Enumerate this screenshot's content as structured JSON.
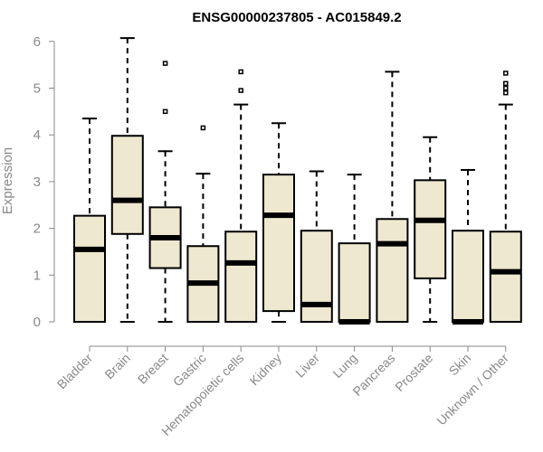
{
  "chart_data": {
    "type": "box",
    "title": "ENSG00000237805 - AC015849.2",
    "ylabel": "Expression",
    "xlabel": "",
    "ylim": [
      0,
      6.2
    ],
    "yticks": [
      0,
      1,
      2,
      3,
      4,
      5,
      6
    ],
    "grid": false,
    "box_color": "#EEE8D0",
    "categories": [
      "Bladder",
      "Brain",
      "Breast",
      "Gastric",
      "Hematopoietic cells",
      "Kidney",
      "Liver",
      "Lung",
      "Pancreas",
      "Prostate",
      "Skin",
      "Unknown / Other"
    ],
    "boxes": [
      {
        "min": 0,
        "q1": 0,
        "median": 1.55,
        "q3": 2.27,
        "max": 4.35,
        "outliers": []
      },
      {
        "min": 0,
        "q1": 1.88,
        "median": 2.6,
        "q3": 3.98,
        "max": 6.07,
        "outliers": []
      },
      {
        "min": 0,
        "q1": 1.15,
        "median": 1.8,
        "q3": 2.45,
        "max": 3.65,
        "outliers": [
          4.5,
          5.53
        ]
      },
      {
        "min": 0,
        "q1": 0,
        "median": 0.83,
        "q3": 1.62,
        "max": 3.17,
        "outliers": [
          4.15
        ]
      },
      {
        "min": 0,
        "q1": 0,
        "median": 1.26,
        "q3": 1.93,
        "max": 4.65,
        "outliers": [
          4.95,
          5.35
        ]
      },
      {
        "min": 0,
        "q1": 0.23,
        "median": 2.28,
        "q3": 3.15,
        "max": 4.25,
        "outliers": []
      },
      {
        "min": 0,
        "q1": 0,
        "median": 0.37,
        "q3": 1.95,
        "max": 3.22,
        "outliers": []
      },
      {
        "min": 0,
        "q1": 0,
        "median": 0,
        "q3": 1.68,
        "max": 3.15,
        "outliers": []
      },
      {
        "min": 0,
        "q1": 0,
        "median": 1.67,
        "q3": 2.2,
        "max": 5.35,
        "outliers": []
      },
      {
        "min": 0,
        "q1": 0.93,
        "median": 2.17,
        "q3": 3.03,
        "max": 3.95,
        "outliers": []
      },
      {
        "min": 0,
        "q1": 0,
        "median": 0,
        "q3": 1.95,
        "max": 3.25,
        "outliers": []
      },
      {
        "min": 0,
        "q1": 0,
        "median": 1.07,
        "q3": 1.93,
        "max": 4.65,
        "outliers": [
          4.9,
          5.0,
          5.1,
          5.32
        ]
      }
    ]
  }
}
